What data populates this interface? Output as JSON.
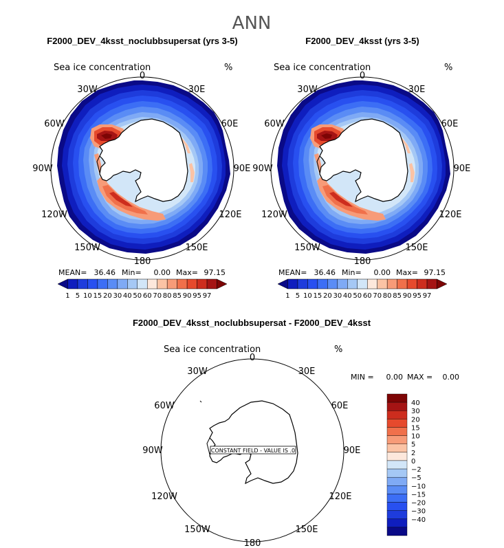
{
  "title": "ANN",
  "panels": {
    "left": {
      "title": "F2000_DEV_4ksst_noclubbsupersat (yrs 3-5)",
      "field_label": "Sea ice concentration",
      "units": "%",
      "stats": {
        "mean_label": "MEAN=",
        "mean": "36.46",
        "min_label": "Min=",
        "min": "0.00",
        "max_label": "Max=",
        "max": "97.15"
      }
    },
    "right": {
      "title": "F2000_DEV_4ksst (yrs 3-5)",
      "field_label": "Sea ice concentration",
      "units": "%",
      "stats": {
        "mean_label": "MEAN=",
        "mean": "36.46",
        "min_label": "Min=",
        "min": "0.00",
        "max_label": "Max=",
        "max": "97.15"
      }
    },
    "diff": {
      "title": "F2000_DEV_4ksst_noclubbsupersat - F2000_DEV_4ksst",
      "field_label": "Sea ice concentration",
      "units": "%",
      "stats": {
        "min_label": "MIN =",
        "min": "0.00",
        "max_label": "MAX =",
        "max": "0.00"
      },
      "constant_note": "CONSTANT FIELD - VALUE IS .0"
    }
  },
  "longitude_labels": {
    "top": "0",
    "top_right": "30E",
    "right_upper": "60E",
    "right": "90E",
    "right_lower": "120E",
    "bottom_right": "150E",
    "bottom": "180",
    "bottom_left": "150W",
    "left_lower": "120W",
    "left": "90W",
    "left_upper": "60W",
    "top_left": "30W"
  },
  "colorbar_main": {
    "labels": [
      "1",
      "5",
      "10",
      "15",
      "20",
      "30",
      "40",
      "50",
      "60",
      "70",
      "80",
      "85",
      "90",
      "95",
      "97"
    ],
    "colors": [
      "#0a0a87",
      "#0f1ebe",
      "#1e3cdc",
      "#2850f0",
      "#3c6ef5",
      "#5a8cf5",
      "#7faaf5",
      "#a5c8f5",
      "#d2e6f8",
      "#fde8dc",
      "#fbc3a5",
      "#f79b78",
      "#f0704b",
      "#e64a2d",
      "#cd2d1e",
      "#a51414",
      "#7d0505"
    ]
  },
  "colorbar_diff": {
    "labels": [
      "40",
      "30",
      "20",
      "15",
      "10",
      "5",
      "2",
      "0",
      "−2",
      "−5",
      "−10",
      "−15",
      "−20",
      "−30",
      "−40"
    ],
    "colors": [
      "#7d0505",
      "#a51414",
      "#cd2d1e",
      "#e64a2d",
      "#f0704b",
      "#f79b78",
      "#fbc3a5",
      "#fde8dc",
      "#d2e6f8",
      "#a5c8f5",
      "#7faaf5",
      "#5a8cf5",
      "#3c6ef5",
      "#2850f0",
      "#1e3cdc",
      "#0f1ebe",
      "#0a0a87"
    ]
  }
}
